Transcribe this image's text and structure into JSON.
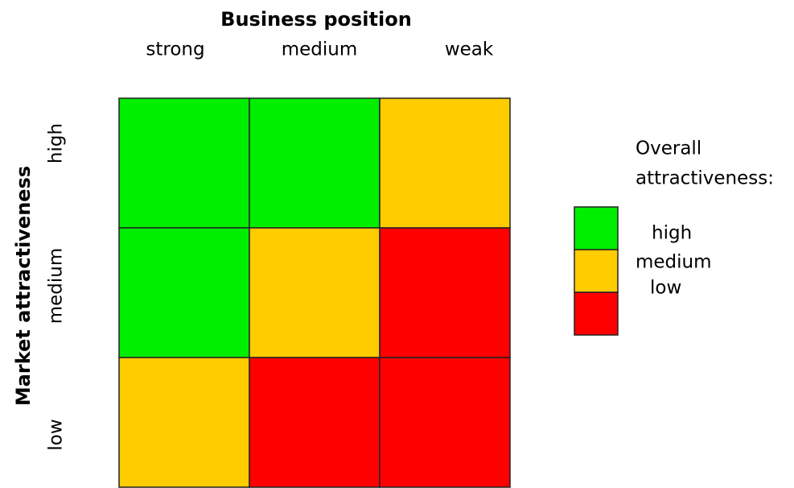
{
  "matrix": {
    "title": "Business position",
    "columns": [
      "strong",
      "medium",
      "weak"
    ],
    "row_axis_title": "Market attractiveness",
    "rows": [
      "high",
      "medium",
      "low"
    ],
    "cells": [
      [
        "#00ee00",
        "#00ee00",
        "#ffcc00"
      ],
      [
        "#00ee00",
        "#ffcc00",
        "#ff0000"
      ],
      [
        "#ffcc00",
        "#ff0000",
        "#ff0000"
      ]
    ]
  },
  "legend": {
    "title_lines": [
      "Overall",
      "attractiveness:"
    ],
    "items": [
      {
        "label": "high",
        "color": "#00ee00"
      },
      {
        "label": "medium",
        "color": "#ffcc00"
      },
      {
        "label": "low",
        "color": "#ff0000"
      }
    ]
  }
}
